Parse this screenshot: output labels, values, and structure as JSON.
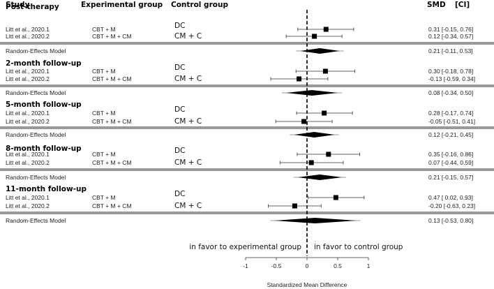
{
  "chart_data": {
    "type": "forest",
    "headers": {
      "study": "Study",
      "experimental": "Experimental group",
      "control": "Control group",
      "smd": "SMD",
      "ci": "[CI]"
    },
    "sections": [
      {
        "label": "Post-therapy",
        "rows": [
          {
            "study": "Litt et al., 2020.1",
            "experimental": "CBT + M",
            "control": "DC",
            "smd": 0.31,
            "lo": -0.15,
            "hi": 0.76,
            "text": "0.31 [-0.15, 0.76]"
          },
          {
            "study": "Litt et al., 2020.2",
            "experimental": "CBT + M + CM",
            "control": "CM + C",
            "smd": 0.12,
            "lo": -0.34,
            "hi": 0.57,
            "text": "0.12 [-0.34, 0.57]"
          }
        ],
        "pooled": {
          "label": "Random-Effects Model",
          "smd": 0.21,
          "lo": -0.11,
          "hi": 0.53,
          "text": "0.21 [-0.11, 0.53]"
        }
      },
      {
        "label": "2-month follow-up",
        "rows": [
          {
            "study": "Litt et al., 2020.1",
            "experimental": "CBT + M",
            "control": "DC",
            "smd": 0.3,
            "lo": -0.18,
            "hi": 0.78,
            "text": "0.30 [-0.18, 0.78]"
          },
          {
            "study": "Litt et al., 2020.2",
            "experimental": "CBT + M + CM",
            "control": "CM + C",
            "smd": -0.13,
            "lo": -0.59,
            "hi": 0.34,
            "text": "-0.13 [-0.59, 0.34]"
          }
        ],
        "pooled": {
          "label": "Random-Effects Model",
          "smd": 0.08,
          "lo": -0.34,
          "hi": 0.5,
          "text": "0.08 [-0.34, 0.50]"
        }
      },
      {
        "label": "5-month follow-up",
        "rows": [
          {
            "study": "Litt et al., 2020.1",
            "experimental": "CBT + M",
            "control": "DC",
            "smd": 0.28,
            "lo": -0.17,
            "hi": 0.74,
            "text": "0.28 [-0.17, 0.74]"
          },
          {
            "study": "Litt et al., 2020.2",
            "experimental": "CBT + M + CM",
            "control": "CM + C",
            "smd": -0.05,
            "lo": -0.51,
            "hi": 0.41,
            "text": "-0.05 [-0.51, 0.41]"
          }
        ],
        "pooled": {
          "label": "Random-Effects Model",
          "smd": 0.12,
          "lo": -0.21,
          "hi": 0.45,
          "text": "0.12 [-0.21, 0.45]"
        }
      },
      {
        "label": "8-month follow-up",
        "rows": [
          {
            "study": "Litt et al., 2020.1",
            "experimental": "CBT + M",
            "control": "DC",
            "smd": 0.35,
            "lo": -0.16,
            "hi": 0.86,
            "text": "0.35 [-0.16, 0.86]"
          },
          {
            "study": "Litt et al., 2020.2",
            "experimental": "CBT + M + CM",
            "control": "CM + C",
            "smd": 0.07,
            "lo": -0.44,
            "hi": 0.59,
            "text": "0.07 [-0.44, 0.59]"
          }
        ],
        "pooled": {
          "label": "Random-Effects Model",
          "smd": 0.21,
          "lo": -0.15,
          "hi": 0.57,
          "text": "0.21 [-0.15, 0.57]"
        }
      },
      {
        "label": "11-month follow-up",
        "rows": [
          {
            "study": "Litt et al., 2020.1",
            "experimental": "CBT + M",
            "control": "DC",
            "smd": 0.47,
            "lo": 0.02,
            "hi": 0.93,
            "text": "0.47 [ 0.02, 0.93]"
          },
          {
            "study": "Litt et al., 2020.2",
            "experimental": "CBT + M + CM",
            "control": "CM + C",
            "smd": -0.2,
            "lo": -0.63,
            "hi": 0.23,
            "text": "-0.20 [-0.63, 0.23]"
          }
        ],
        "pooled": {
          "label": "Random-Effects Model",
          "smd": 0.13,
          "lo": -0.53,
          "hi": 0.8,
          "text": "0.13 [-0.53, 0.80]"
        }
      }
    ],
    "favor_left": "in favor to experimental group",
    "favor_right": "in favor to control group",
    "xlabel": "Standardized Mean Difference",
    "xticks": [
      -1,
      -0.5,
      0,
      0.5,
      1
    ],
    "xtick_labels": [
      "-1",
      "-0.5",
      "0",
      "0.5",
      "1"
    ],
    "xlim": [
      -1,
      1
    ]
  }
}
